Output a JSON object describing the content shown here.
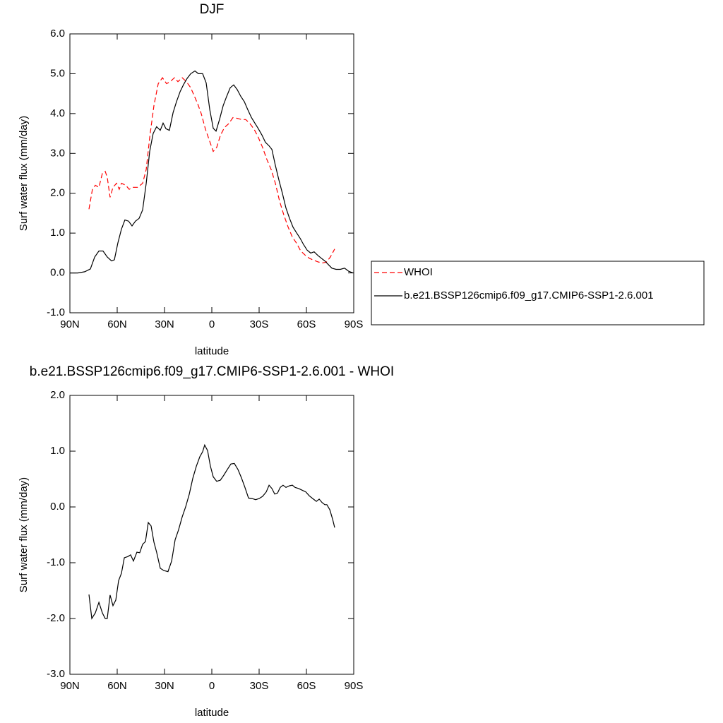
{
  "chart_data": [
    {
      "type": "line",
      "title": "DJF",
      "xlabel": "latitude",
      "ylabel": "Surf water flux (mm/day)",
      "xlim": [
        90,
        -90
      ],
      "xticks": [
        {
          "value": 90,
          "label": "90N"
        },
        {
          "value": 60,
          "label": "60N"
        },
        {
          "value": 30,
          "label": "30N"
        },
        0,
        {
          "value": -30,
          "label": "30S"
        },
        {
          "value": -60,
          "label": "60S"
        },
        {
          "value": -90,
          "label": "90S"
        }
      ],
      "ylim": [
        -1,
        6
      ],
      "yticks": [
        {
          "value": -1,
          "label": "-1.0"
        },
        {
          "value": 0,
          "label": "0.0"
        },
        {
          "value": 1,
          "label": "1.0"
        },
        {
          "value": 2,
          "label": "2.0"
        },
        {
          "value": 3,
          "label": "3.0"
        },
        {
          "value": 4,
          "label": "4.0"
        },
        {
          "value": 5,
          "label": "5.0"
        },
        {
          "value": 6,
          "label": "6.0"
        }
      ],
      "legend": "outside-right",
      "series": [
        {
          "name": "WHOI",
          "color": "#ff0000",
          "dashed": true,
          "x": [
            77.9,
            75.7,
            73.9,
            71.6,
            69.4,
            67.6,
            66.3,
            64.5,
            62.7,
            60.4,
            58.7,
            57.3,
            54.6,
            52.4,
            50.1,
            47,
            43.9,
            41.6,
            39.4,
            36.7,
            34,
            31.3,
            28.7,
            26.4,
            23.7,
            21.5,
            18.8,
            16.1,
            13.4,
            11.2,
            9,
            6.7,
            4,
            1.3,
            -0.9,
            -3.1,
            -5.4,
            -8,
            -10.8,
            -13.4,
            -16.1,
            -18.8,
            -21.5,
            -24.2,
            -26.9,
            -29.5,
            -32.2,
            -34.9,
            -37.6,
            -40.3,
            -43,
            -45.7,
            -48.4,
            -51.1,
            -53.7,
            -56.4,
            -59.1,
            -61.8,
            -64.5,
            -67.2,
            -69.9,
            -72.6,
            -75.2,
            -77.9
          ],
          "values": [
            1.6,
            2.1,
            2.2,
            2.15,
            2.5,
            2.55,
            2.4,
            1.9,
            2.15,
            2.25,
            2.1,
            2.25,
            2.2,
            2.1,
            2.15,
            2.15,
            2.25,
            2.6,
            3.4,
            4.2,
            4.75,
            4.9,
            4.75,
            4.8,
            4.9,
            4.8,
            4.9,
            4.8,
            4.65,
            4.45,
            4.25,
            4.0,
            3.6,
            3.3,
            3.05,
            3.15,
            3.45,
            3.65,
            3.75,
            3.9,
            3.88,
            3.85,
            3.85,
            3.75,
            3.6,
            3.4,
            3.15,
            2.85,
            2.6,
            2.25,
            1.8,
            1.45,
            1.15,
            0.9,
            0.75,
            0.55,
            0.45,
            0.37,
            0.32,
            0.28,
            0.25,
            0.27,
            0.4,
            0.6
          ]
        },
        {
          "name": "b.e21.BSSP126cmip6.f09_g17.CMIP6-SSP1-2.6.001",
          "color": "#000000",
          "dashed": false,
          "x": [
            90,
            85,
            80.6,
            77,
            74.3,
            71.6,
            69,
            66.3,
            63.6,
            61.8,
            59.6,
            57.3,
            55.1,
            52.8,
            50.6,
            48.4,
            46.1,
            43.9,
            41.6,
            39.4,
            37.2,
            35,
            32.7,
            30.9,
            29.1,
            26.9,
            24.6,
            22.4,
            20.1,
            17.9,
            15.7,
            13.4,
            10.7,
            8.5,
            5.8,
            3.6,
            1.3,
            -0.9,
            -2.7,
            -4.9,
            -7.2,
            -9.4,
            -11.7,
            -13.9,
            -16.1,
            -18.4,
            -20.6,
            -22.8,
            -25.1,
            -27.3,
            -29.5,
            -31.8,
            -34,
            -36.3,
            -38.1,
            -40.3,
            -42.5,
            -44.8,
            -47,
            -49.3,
            -51.5,
            -53.7,
            -56,
            -58.2,
            -60.5,
            -62.7,
            -64.9,
            -67.2,
            -69.4,
            -71.7,
            -73.9,
            -76.1,
            -78.8,
            -81.5,
            -84.2,
            -86.9,
            -89.6
          ],
          "values": [
            0,
            0,
            0.03,
            0.1,
            0.4,
            0.55,
            0.55,
            0.4,
            0.3,
            0.33,
            0.75,
            1.1,
            1.33,
            1.3,
            1.18,
            1.3,
            1.37,
            1.58,
            2.25,
            3.05,
            3.5,
            3.67,
            3.58,
            3.76,
            3.62,
            3.58,
            4.02,
            4.3,
            4.55,
            4.73,
            4.88,
            5.0,
            5.07,
            5.0,
            5.0,
            4.77,
            4.1,
            3.63,
            3.56,
            3.85,
            4.2,
            4.43,
            4.65,
            4.72,
            4.6,
            4.43,
            4.3,
            4.1,
            3.9,
            3.76,
            3.62,
            3.46,
            3.28,
            3.19,
            3.1,
            2.7,
            2.34,
            1.99,
            1.63,
            1.37,
            1.15,
            1.01,
            0.87,
            0.71,
            0.57,
            0.5,
            0.53,
            0.44,
            0.37,
            0.3,
            0.21,
            0.12,
            0.09,
            0.09,
            0.12,
            0.04,
            0
          ]
        }
      ]
    },
    {
      "type": "line",
      "title": "b.e21.BSSP126cmip6.f09_g17.CMIP6-SSP1-2.6.001 - WHOI",
      "xlabel": "latitude",
      "ylabel": "Surf water flux (mm/day)",
      "xlim": [
        90,
        -90
      ],
      "xticks": [
        {
          "value": 90,
          "label": "90N"
        },
        {
          "value": 60,
          "label": "60N"
        },
        {
          "value": 30,
          "label": "30N"
        },
        0,
        {
          "value": -30,
          "label": "30S"
        },
        {
          "value": -60,
          "label": "60S"
        },
        {
          "value": -90,
          "label": "90S"
        }
      ],
      "ylim": [
        -3,
        2
      ],
      "yticks": [
        {
          "value": -3,
          "label": "-3.0"
        },
        {
          "value": -2,
          "label": "-2.0"
        },
        {
          "value": -1,
          "label": "-1.0"
        },
        {
          "value": 0,
          "label": "0.0"
        },
        {
          "value": 1,
          "label": "1.0"
        },
        {
          "value": 2,
          "label": "2.0"
        }
      ],
      "series": [
        {
          "color": "#000000",
          "dashed": false,
          "x": [
            77.9,
            76.1,
            73.9,
            71.6,
            69.4,
            67.6,
            66.3,
            64.5,
            62.7,
            60.9,
            59.1,
            57.3,
            55.5,
            53.3,
            51.5,
            49.7,
            47.5,
            45.7,
            43.9,
            42.1,
            40.3,
            38.5,
            36.7,
            35,
            32.7,
            30.4,
            27.8,
            25.5,
            23.3,
            21.1,
            18.8,
            16.6,
            14.3,
            12.1,
            9.8,
            7.6,
            5.8,
            4.5,
            2.7,
            0.9,
            -0.9,
            -3.1,
            -5.4,
            -7.6,
            -9.8,
            -12.1,
            -14.3,
            -16.6,
            -18.8,
            -21,
            -23.3,
            -25.5,
            -27.8,
            -30,
            -32.2,
            -34.5,
            -36.3,
            -38.1,
            -39.9,
            -41.7,
            -43.4,
            -45.2,
            -47,
            -49.3,
            -51.1,
            -52.8,
            -55.1,
            -57.3,
            -59.6,
            -61.8,
            -64,
            -66.3,
            -68.1,
            -69.9,
            -71.7,
            -73,
            -74.8,
            -76.6,
            -77.9
          ],
          "values": [
            -1.57,
            -2.0,
            -1.9,
            -1.71,
            -1.9,
            -2.0,
            -2.0,
            -1.58,
            -1.77,
            -1.67,
            -1.32,
            -1.19,
            -0.91,
            -0.89,
            -0.86,
            -0.97,
            -0.81,
            -0.82,
            -0.67,
            -0.62,
            -0.28,
            -0.34,
            -0.63,
            -0.81,
            -1.1,
            -1.14,
            -1.16,
            -0.97,
            -0.59,
            -0.41,
            -0.18,
            0,
            0.23,
            0.51,
            0.73,
            0.9,
            0.99,
            1.11,
            1.01,
            0.73,
            0.54,
            0.46,
            0.48,
            0.57,
            0.67,
            0.77,
            0.78,
            0.67,
            0.52,
            0.35,
            0.16,
            0.15,
            0.13,
            0.15,
            0.19,
            0.27,
            0.39,
            0.33,
            0.23,
            0.25,
            0.35,
            0.39,
            0.35,
            0.38,
            0.39,
            0.35,
            0.33,
            0.3,
            0.27,
            0.2,
            0.15,
            0.1,
            0.14,
            0.08,
            0.04,
            0.04,
            -0.05,
            -0.22,
            -0.37
          ]
        }
      ]
    }
  ]
}
